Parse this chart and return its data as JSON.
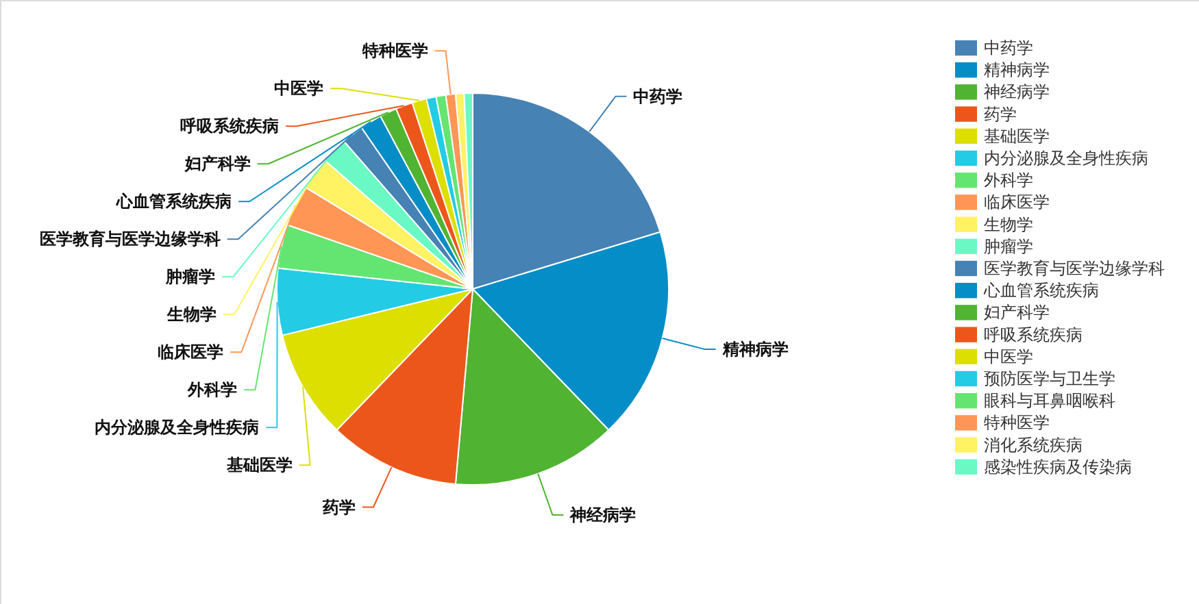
{
  "chart_data": {
    "type": "pie",
    "categories": [
      "中药学",
      "精神病学",
      "神经病学",
      "药学",
      "基础医学",
      "内分泌腺及全身性疾病",
      "外科学",
      "临床医学",
      "生物学",
      "肿瘤学",
      "医学教育与医学边缘学科",
      "心血管系统疾病",
      "妇产科学",
      "呼吸系统疾病",
      "中医学",
      "预防医学与卫生学",
      "眼科与耳鼻咽喉科",
      "特种医学",
      "消化系统疾病",
      "感染性疾病及传染病"
    ],
    "values": [
      20.3,
      17.5,
      13.6,
      10.8,
      9.0,
      5.5,
      3.6,
      3.4,
      2.7,
      2.2,
      1.8,
      1.8,
      1.4,
      1.4,
      1.2,
      0.8,
      0.8,
      0.8,
      0.7,
      0.7
    ],
    "colors": [
      "#4682b4",
      "#058dc7",
      "#50b432",
      "#ed561b",
      "#dddf00",
      "#24cbe5",
      "#64e572",
      "#ff9655",
      "#fff263",
      "#6af9c4",
      "#4682b4",
      "#058dc7",
      "#50b432",
      "#ed561b",
      "#dddf00",
      "#24cbe5",
      "#64e572",
      "#ff9655",
      "#fff263",
      "#6af9c4"
    ],
    "value_labels": [
      "中药学",
      "精神病学",
      "神经病学",
      "药学",
      "基础医学",
      "内分泌腺及全身性疾病",
      "外科学",
      "临床医学",
      "生物学",
      "肿瘤学",
      "医学教育与医学边缘学科",
      "心血管系统疾病",
      "妇产科学",
      "呼吸系统疾病",
      "中医学",
      null,
      null,
      "特种医学",
      null,
      null
    ],
    "legend": "right"
  }
}
